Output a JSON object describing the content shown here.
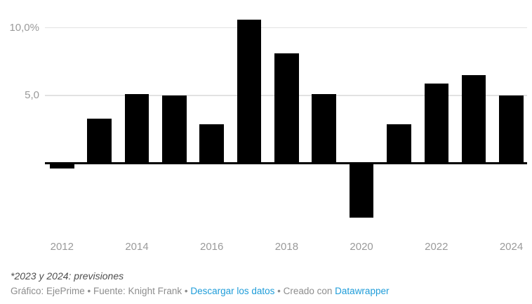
{
  "chart_data": {
    "type": "bar",
    "title": "",
    "unit": "%",
    "categories": [
      "2012",
      "2013",
      "2014",
      "2015",
      "2016",
      "2017",
      "2018",
      "2019",
      "2020",
      "2021",
      "2022",
      "2023",
      "2024"
    ],
    "values": [
      -0.4,
      3.3,
      5.1,
      5.0,
      2.9,
      10.6,
      8.1,
      5.1,
      -4.0,
      2.9,
      5.9,
      6.5,
      5.0
    ],
    "ylim": [
      -5,
      11
    ],
    "grid": true,
    "y_axis": {
      "ticks": [
        {
          "value": 10,
          "label": "10,0%"
        },
        {
          "value": 5,
          "label": "5,0"
        }
      ]
    },
    "x_axis": {
      "labels": [
        "2012",
        "2014",
        "2016",
        "2018",
        "2020",
        "2022",
        "2024"
      ]
    },
    "legend": "none"
  },
  "colors": {
    "bar": "#000000",
    "baseline": "#000000",
    "grid": "#e2e2e2",
    "axis_text": "#9a9a9a",
    "note_text": "#4d4d4d",
    "attribution_text": "#8d8d8d",
    "link": "#1e9cd9",
    "background": "#ffffff"
  },
  "footer": {
    "note": "*2023 y 2024: previsiones",
    "attribution": [
      {
        "text": "Gráfico: EjePrime",
        "link": false,
        "id": "credit-text"
      },
      {
        "text": " • ",
        "link": false,
        "id": "separator"
      },
      {
        "text": "Fuente: Knight Frank",
        "link": false,
        "id": "source-text"
      },
      {
        "text": " • ",
        "link": false,
        "id": "separator"
      },
      {
        "text": "Descargar los datos",
        "link": true,
        "id": "download-data-link"
      },
      {
        "text": " • ",
        "link": false,
        "id": "separator"
      },
      {
        "text": "Creado con ",
        "link": false,
        "id": "created-with-text"
      },
      {
        "text": "Datawrapper",
        "link": true,
        "id": "datawrapper-link"
      }
    ]
  }
}
